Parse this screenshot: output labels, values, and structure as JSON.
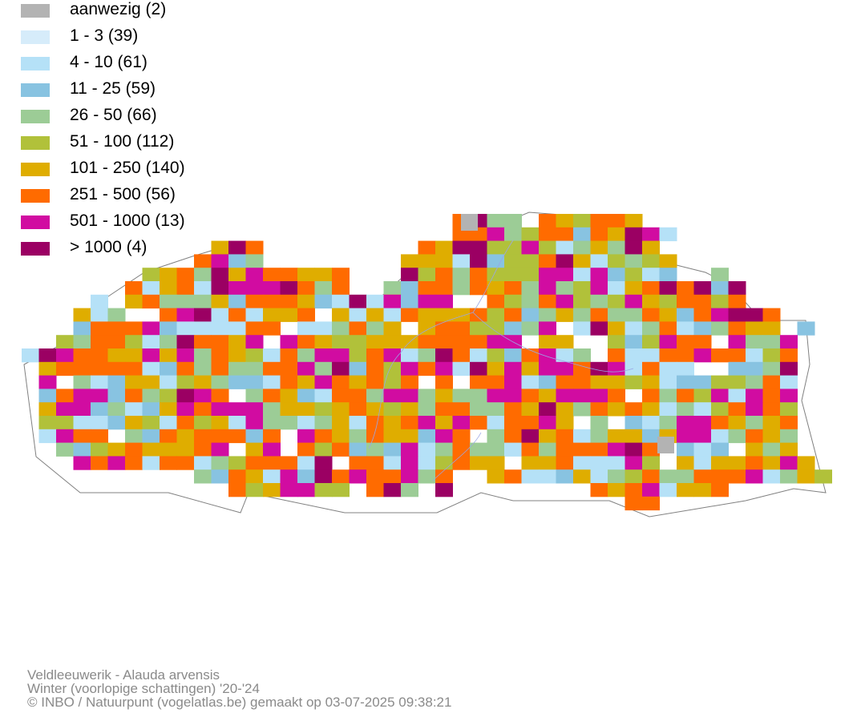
{
  "legend": [
    {
      "label": "aanwezig (2)",
      "color": "#b3b3b3"
    },
    {
      "label": "1 - 3 (39)",
      "color": "#d6ecfa"
    },
    {
      "label": "4 - 10 (61)",
      "color": "#b5e1f7"
    },
    {
      "label": "11 - 25 (59)",
      "color": "#88c3e1"
    },
    {
      "label": "26 - 50 (66)",
      "color": "#9ccc96"
    },
    {
      "label": "51 - 100 (112)",
      "color": "#b1c13a"
    },
    {
      "label": "101 - 250 (140)",
      "color": "#dfad00"
    },
    {
      "label": "251 - 500 (56)",
      "color": "#ff6b00"
    },
    {
      "label": "501 - 1000 (13)",
      "color": "#d10ca1"
    },
    {
      "label": "> 1000 (4)",
      "color": "#9b0063"
    }
  ],
  "footer": {
    "species": "Veldleeuwerik - Alauda arvensis",
    "period": "Winter (voorlopige schattingen) '20-'24",
    "credit": "© INBO / Natuurpunt (vogelatlas.be) gemaakt op 03-07-2025 09:38:21"
  }
}
